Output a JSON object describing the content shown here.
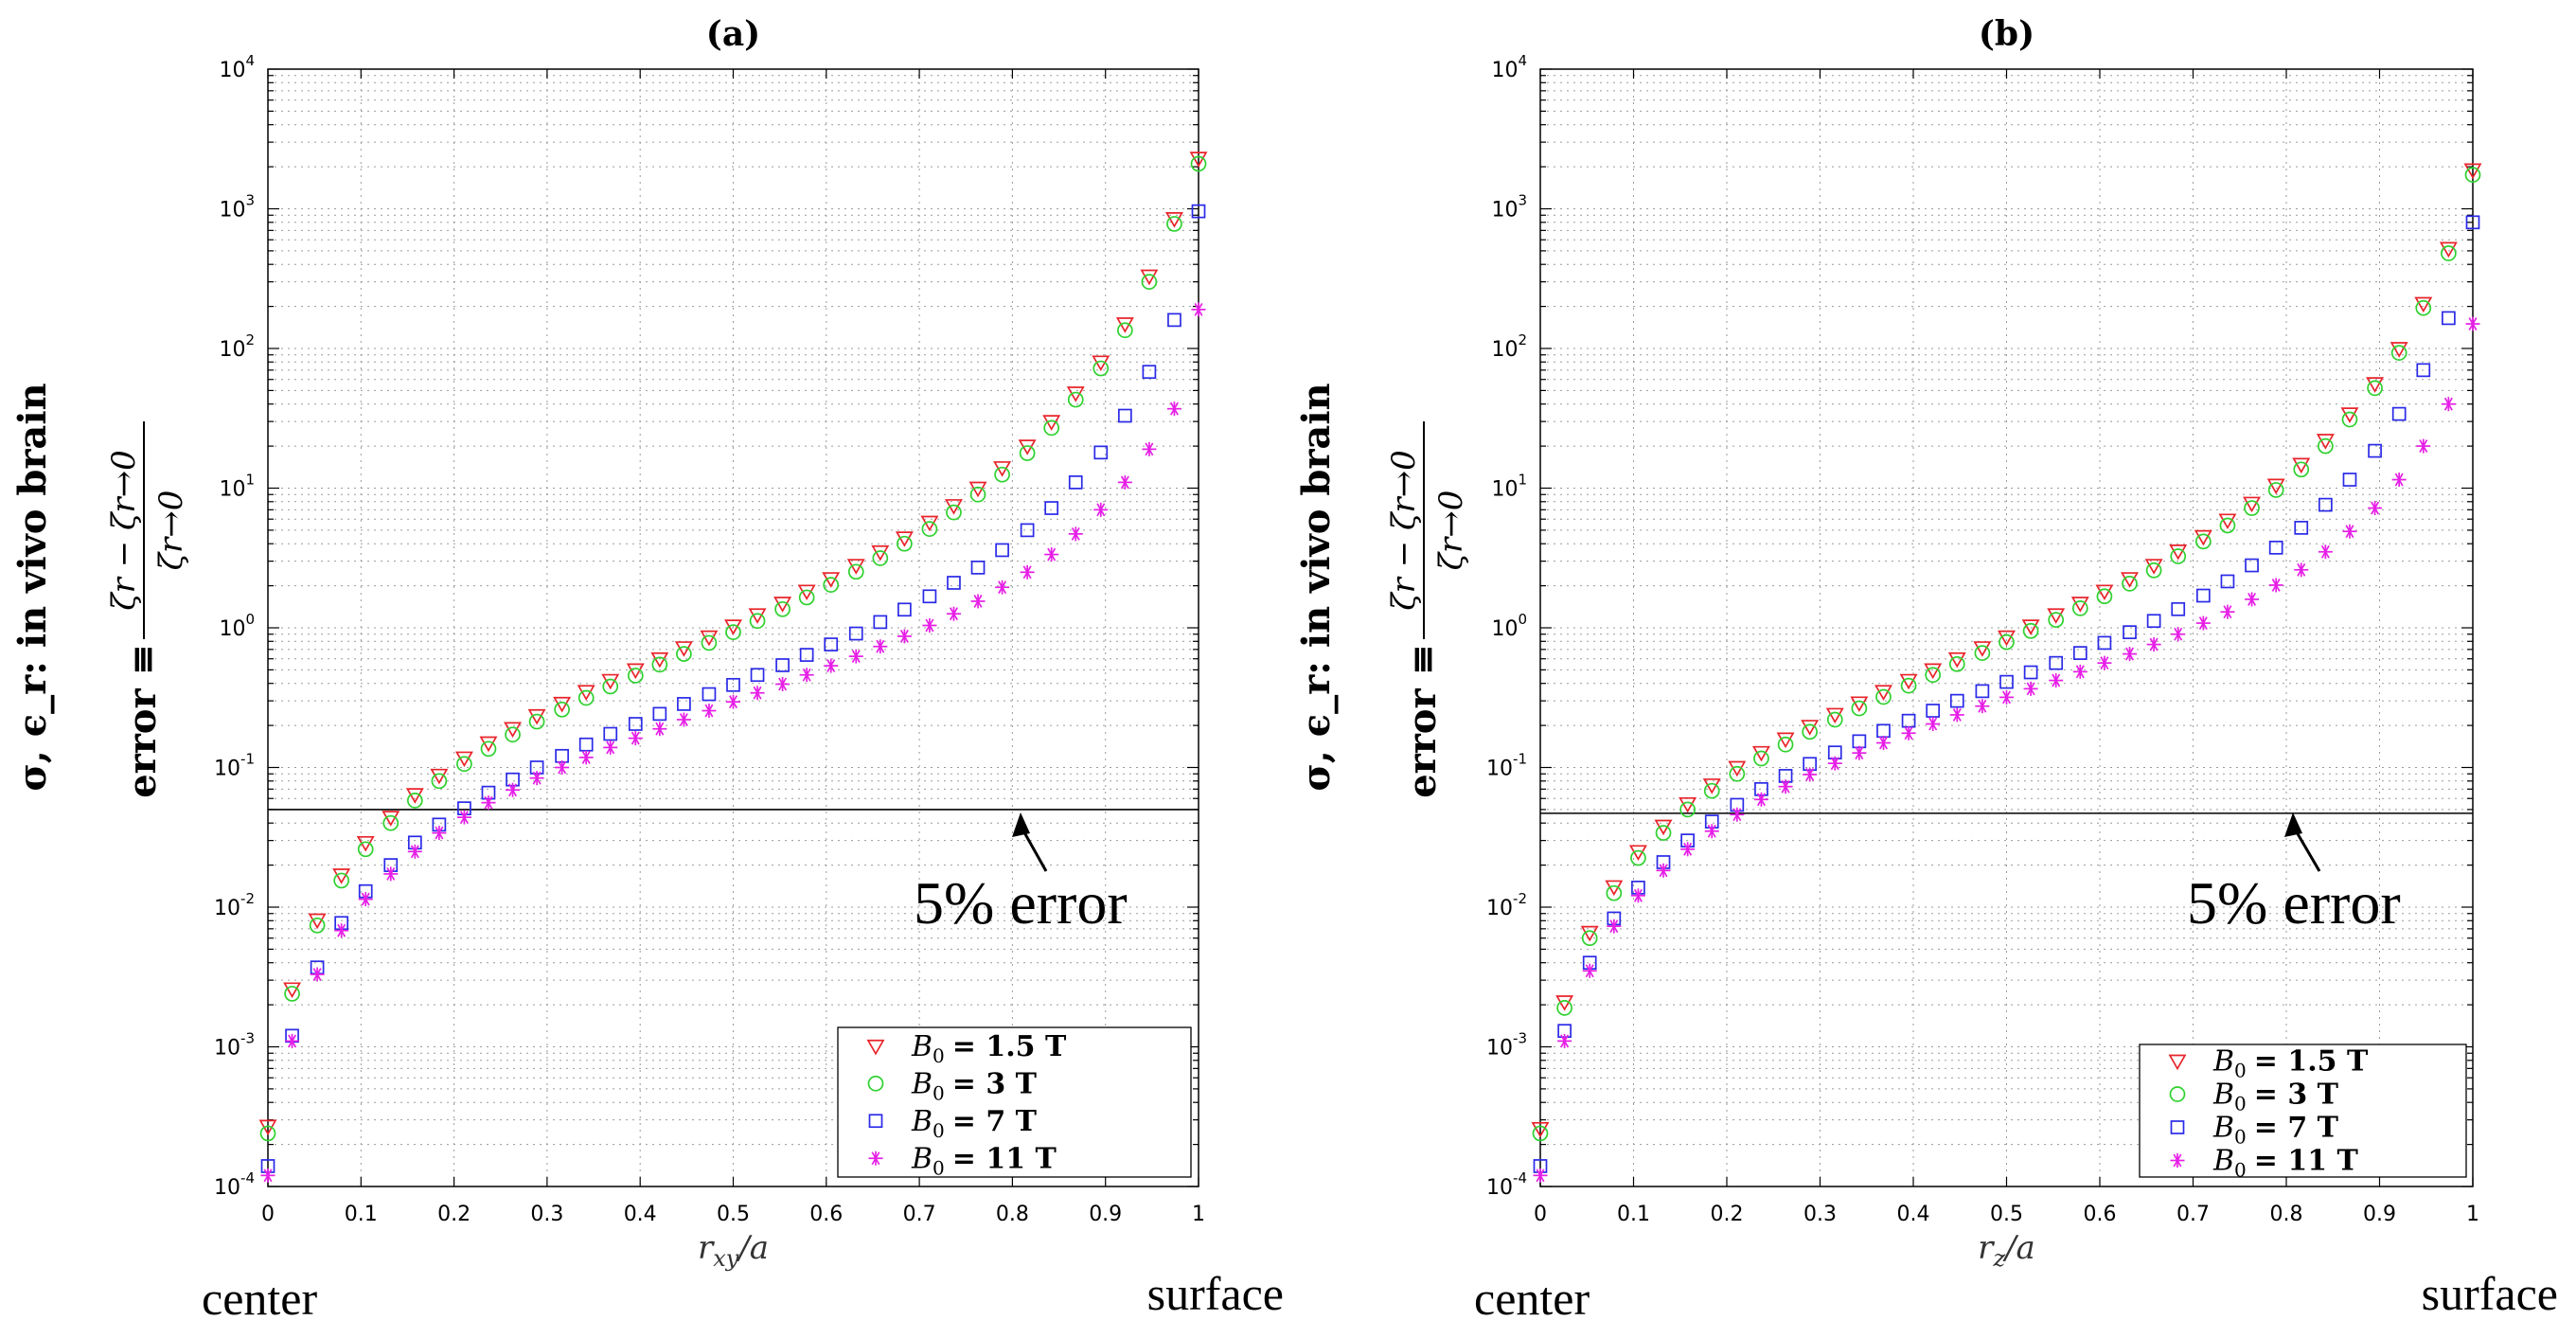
{
  "chart_data": [
    {
      "type": "scatter",
      "title": "(a)",
      "xlabel": "r_xy/a",
      "xlabel_main": "r",
      "xlabel_sub": "xy",
      "xlabel_tail": "/a",
      "ylabel_line1": "σ, ϵ_r: in vivo brain",
      "ylabel_line2_prefix": "error ≡",
      "ylabel_numerator": "ζr − ζr→0",
      "ylabel_denominator": "ζr→0",
      "yscale": "log",
      "xlim": [
        0,
        1
      ],
      "ylim": [
        0.0001,
        10000
      ],
      "x_ticks": [
        "0",
        "0.1",
        "0.2",
        "0.3",
        "0.4",
        "0.5",
        "0.6",
        "0.7",
        "0.8",
        "0.9",
        "1"
      ],
      "y_tick_base": "10",
      "y_tick_exponents": [
        "-4",
        "-3",
        "-2",
        "-1",
        "0",
        "1",
        "2",
        "3",
        "4"
      ],
      "grid": true,
      "reference_line": {
        "y": 0.05,
        "label": "5% error"
      },
      "edge_labels": {
        "left": "center",
        "right": "surface"
      },
      "legend_location": "bottom-right",
      "x": [
        0.0,
        0.026,
        0.053,
        0.079,
        0.105,
        0.132,
        0.158,
        0.184,
        0.211,
        0.237,
        0.263,
        0.289,
        0.316,
        0.342,
        0.368,
        0.395,
        0.421,
        0.447,
        0.474,
        0.5,
        0.526,
        0.553,
        0.579,
        0.605,
        0.632,
        0.658,
        0.684,
        0.711,
        0.737,
        0.763,
        0.789,
        0.816,
        0.842,
        0.868,
        0.895,
        0.921,
        0.947,
        0.974,
        1.0
      ],
      "series": [
        {
          "name": "B0 = 1.5 T",
          "legend_var": "B",
          "legend_sub": "0",
          "legend_value": "= 1.5 T",
          "marker": "triangle-down",
          "color": "#e8242a",
          "values": [
            0.00027,
            0.0026,
            0.0081,
            0.017,
            0.029,
            0.044,
            0.064,
            0.088,
            0.117,
            0.15,
            0.19,
            0.235,
            0.288,
            0.35,
            0.42,
            0.5,
            0.6,
            0.72,
            0.86,
            1.03,
            1.24,
            1.5,
            1.83,
            2.25,
            2.8,
            3.5,
            4.4,
            5.7,
            7.5,
            10,
            14,
            20,
            30,
            48,
            80,
            150,
            330,
            850,
            2300
          ]
        },
        {
          "name": "B0 = 3 T",
          "legend_var": "B",
          "legend_sub": "0",
          "legend_value": "= 3 T",
          "marker": "circle",
          "color": "#2fd12f",
          "values": [
            0.00024,
            0.0024,
            0.0074,
            0.0155,
            0.026,
            0.04,
            0.058,
            0.08,
            0.106,
            0.136,
            0.172,
            0.213,
            0.26,
            0.315,
            0.38,
            0.455,
            0.545,
            0.65,
            0.78,
            0.93,
            1.12,
            1.36,
            1.65,
            2.03,
            2.52,
            3.15,
            4.0,
            5.1,
            6.7,
            9.0,
            12.5,
            17.8,
            27,
            43,
            72,
            135,
            300,
            780,
            2100
          ]
        },
        {
          "name": "B0 = 7 T",
          "legend_var": "B",
          "legend_sub": "0",
          "legend_value": "= 7 T",
          "marker": "square",
          "color": "#2a2ae8",
          "values": [
            0.00014,
            0.0012,
            0.0037,
            0.0077,
            0.013,
            0.02,
            0.029,
            0.039,
            0.051,
            0.066,
            0.082,
            0.1,
            0.121,
            0.146,
            0.174,
            0.205,
            0.242,
            0.285,
            0.335,
            0.39,
            0.46,
            0.54,
            0.64,
            0.76,
            0.91,
            1.1,
            1.35,
            1.68,
            2.1,
            2.7,
            3.6,
            5.0,
            7.2,
            11,
            18,
            33,
            68,
            160,
            960
          ]
        },
        {
          "name": "B0 = 11 T",
          "legend_var": "B",
          "legend_sub": "0",
          "legend_value": "= 11 T",
          "marker": "asterisk",
          "color": "#e61ee6",
          "values": [
            0.00012,
            0.0011,
            0.0033,
            0.0068,
            0.0114,
            0.0173,
            0.025,
            0.034,
            0.044,
            0.056,
            0.069,
            0.084,
            0.1,
            0.118,
            0.139,
            0.162,
            0.189,
            0.22,
            0.255,
            0.295,
            0.342,
            0.395,
            0.46,
            0.535,
            0.625,
            0.735,
            0.87,
            1.04,
            1.26,
            1.55,
            1.95,
            2.5,
            3.35,
            4.7,
            7.0,
            11,
            19,
            37,
            190
          ]
        }
      ]
    },
    {
      "type": "scatter",
      "title": "(b)",
      "xlabel": "r_z/a",
      "xlabel_main": "r",
      "xlabel_sub": "z",
      "xlabel_tail": "/a",
      "ylabel_line1": "σ, ϵ_r: in vivo brain",
      "ylabel_line2_prefix": "error ≡",
      "ylabel_numerator": "ζr − ζr→0",
      "ylabel_denominator": "ζr→0",
      "yscale": "log",
      "xlim": [
        0,
        1
      ],
      "ylim": [
        0.0001,
        10000
      ],
      "x_ticks": [
        "0",
        "0.1",
        "0.2",
        "0.3",
        "0.4",
        "0.5",
        "0.6",
        "0.7",
        "0.8",
        "0.9",
        "1"
      ],
      "y_tick_base": "10",
      "y_tick_exponents": [
        "-4",
        "-3",
        "-2",
        "-1",
        "0",
        "1",
        "2",
        "3",
        "4"
      ],
      "grid": true,
      "reference_line": {
        "y": 0.047,
        "label": "5% error"
      },
      "edge_labels": {
        "left": "center",
        "right": "surface"
      },
      "legend_location": "bottom-right",
      "x": [
        0.0,
        0.026,
        0.053,
        0.079,
        0.105,
        0.132,
        0.158,
        0.184,
        0.211,
        0.237,
        0.263,
        0.289,
        0.316,
        0.342,
        0.368,
        0.395,
        0.421,
        0.447,
        0.474,
        0.5,
        0.526,
        0.553,
        0.579,
        0.605,
        0.632,
        0.658,
        0.684,
        0.711,
        0.737,
        0.763,
        0.789,
        0.816,
        0.842,
        0.868,
        0.895,
        0.921,
        0.947,
        0.974,
        1.0
      ],
      "series": [
        {
          "name": "B0 = 1.5 T",
          "legend_var": "B",
          "legend_sub": "0",
          "legend_value": "= 1.5 T",
          "marker": "triangle-down",
          "color": "#e8242a",
          "values": [
            0.00026,
            0.0021,
            0.0066,
            0.014,
            0.025,
            0.038,
            0.055,
            0.075,
            0.1,
            0.128,
            0.16,
            0.197,
            0.24,
            0.29,
            0.35,
            0.42,
            0.5,
            0.6,
            0.72,
            0.86,
            1.03,
            1.24,
            1.5,
            1.83,
            2.25,
            2.8,
            3.55,
            4.5,
            5.9,
            7.8,
            10.5,
            14.8,
            22,
            34,
            56,
            100,
            210,
            520,
            1900
          ]
        },
        {
          "name": "B0 = 3 T",
          "legend_var": "B",
          "legend_sub": "0",
          "legend_value": "= 3 T",
          "marker": "circle",
          "color": "#2fd12f",
          "values": [
            0.00024,
            0.0019,
            0.006,
            0.0126,
            0.0225,
            0.034,
            0.05,
            0.068,
            0.09,
            0.116,
            0.146,
            0.18,
            0.22,
            0.265,
            0.32,
            0.385,
            0.46,
            0.55,
            0.66,
            0.79,
            0.95,
            1.14,
            1.38,
            1.68,
            2.07,
            2.58,
            3.25,
            4.15,
            5.4,
            7.2,
            9.7,
            13.6,
            20,
            31,
            52,
            93,
            195,
            480,
            1750
          ]
        },
        {
          "name": "B0 = 7 T",
          "legend_var": "B",
          "legend_sub": "0",
          "legend_value": "= 7 T",
          "marker": "square",
          "color": "#2a2ae8",
          "values": [
            0.00014,
            0.0013,
            0.004,
            0.0083,
            0.0138,
            0.021,
            0.03,
            0.041,
            0.054,
            0.07,
            0.087,
            0.106,
            0.128,
            0.154,
            0.183,
            0.216,
            0.255,
            0.3,
            0.352,
            0.41,
            0.48,
            0.56,
            0.66,
            0.78,
            0.93,
            1.12,
            1.36,
            1.7,
            2.15,
            2.8,
            3.75,
            5.2,
            7.6,
            11.5,
            18.5,
            34,
            70,
            165,
            800
          ]
        },
        {
          "name": "B0 = 11 T",
          "legend_var": "B",
          "legend_sub": "0",
          "legend_value": "= 11 T",
          "marker": "asterisk",
          "color": "#e61ee6",
          "values": [
            0.00012,
            0.0011,
            0.0035,
            0.0073,
            0.0121,
            0.0183,
            0.026,
            0.035,
            0.046,
            0.059,
            0.073,
            0.089,
            0.107,
            0.127,
            0.15,
            0.176,
            0.205,
            0.238,
            0.275,
            0.318,
            0.366,
            0.42,
            0.485,
            0.56,
            0.65,
            0.76,
            0.9,
            1.08,
            1.3,
            1.6,
            2.02,
            2.6,
            3.5,
            4.9,
            7.2,
            11.5,
            20,
            40,
            150
          ]
        }
      ]
    }
  ]
}
